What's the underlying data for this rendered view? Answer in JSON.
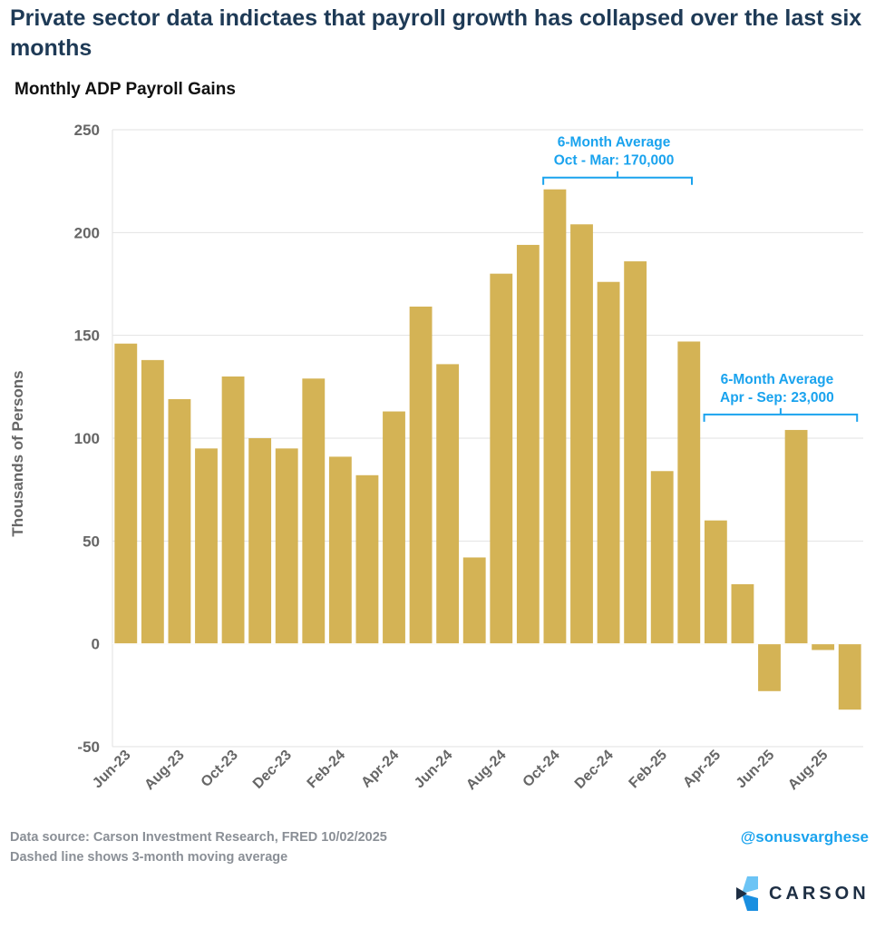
{
  "title": "Private sector data indictaes that payroll growth has collapsed over the last six months",
  "subtitle": "Monthly ADP Payroll Gains",
  "footer": {
    "source": "Data source: Carson Investment Research, FRED   10/02/2025",
    "note": "Dashed line shows 3-month moving average",
    "handle": "@sonusvarghese",
    "logo": "CARSON"
  },
  "colors": {
    "bar": "#d4b355",
    "annotation": "#1aa3ee",
    "title": "#1e3a56",
    "grid": "#e2e2e2"
  },
  "chart_data": {
    "type": "bar",
    "title": "Monthly ADP Payroll Gains",
    "ylabel": "Thousands of Persons",
    "xlabel": "",
    "ylim": [
      -50,
      250
    ],
    "yticks": [
      -50,
      0,
      50,
      100,
      150,
      200,
      250
    ],
    "grid": true,
    "categories": [
      "Jun-23",
      "Jul-23",
      "Aug-23",
      "Sep-23",
      "Oct-23",
      "Nov-23",
      "Dec-23",
      "Jan-24",
      "Feb-24",
      "Mar-24",
      "Apr-24",
      "May-24",
      "Jun-24",
      "Jul-24",
      "Aug-24",
      "Sep-24",
      "Oct-24",
      "Nov-24",
      "Dec-24",
      "Jan-25",
      "Feb-25",
      "Mar-25",
      "Apr-25",
      "May-25",
      "Jun-25",
      "Jul-25",
      "Aug-25",
      "Sep-25"
    ],
    "xtick_labels": [
      "Jun-23",
      "Aug-23",
      "Oct-23",
      "Dec-23",
      "Feb-24",
      "Apr-24",
      "Jun-24",
      "Aug-24",
      "Oct-24",
      "Dec-24",
      "Feb-25",
      "Apr-25",
      "Jun-25",
      "Aug-25"
    ],
    "values": [
      146,
      138,
      119,
      95,
      130,
      100,
      95,
      129,
      91,
      82,
      113,
      164,
      136,
      42,
      180,
      194,
      221,
      204,
      176,
      186,
      84,
      147,
      60,
      29,
      -23,
      104,
      -3,
      -32
    ],
    "annotations": [
      {
        "line1": "6-Month Average",
        "line2": "Oct - Mar: 170,000",
        "from": "Oct-24",
        "to": "Mar-25"
      },
      {
        "line1": "6-Month Average",
        "line2": "Apr - Sep: 23,000",
        "from": "Apr-25",
        "to": "Sep-25"
      }
    ]
  }
}
